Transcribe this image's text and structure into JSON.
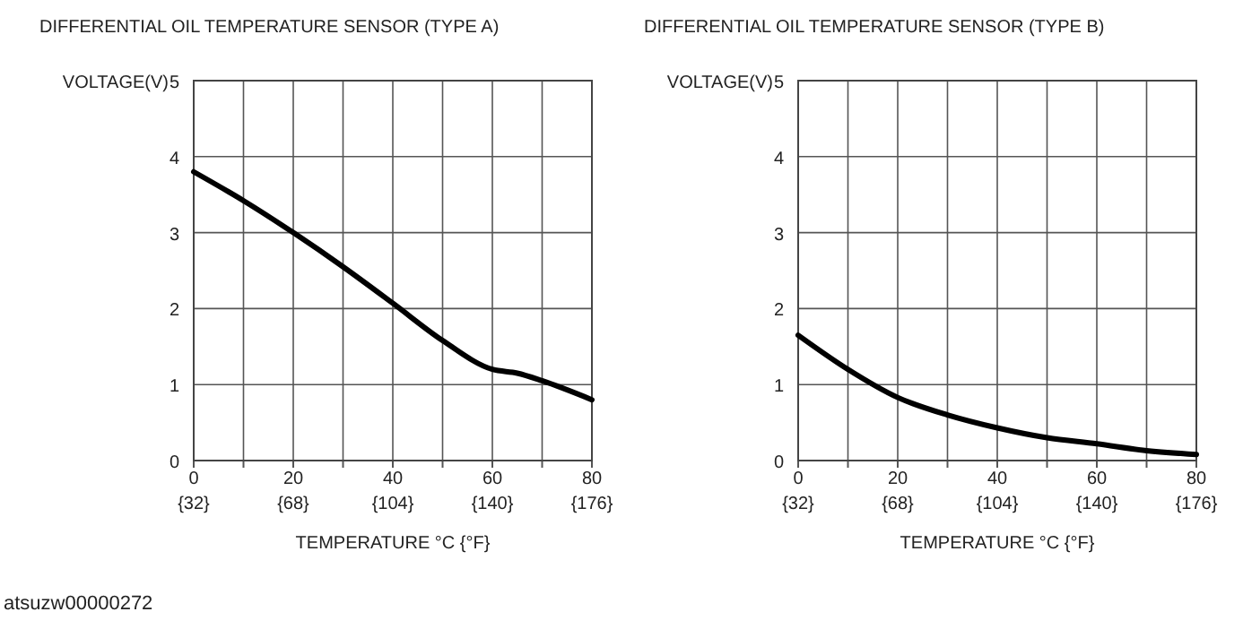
{
  "chart_data": [
    {
      "type": "line",
      "title": "DIFFERENTIAL OIL TEMPERATURE SENSOR (TYPE A)",
      "xlabel": "TEMPERATURE °C {°F}",
      "ylabel": "VOLTAGE(V)",
      "annotations": [
        "atsuzw00000272"
      ],
      "x": [
        0,
        10,
        20,
        30,
        40,
        50,
        60,
        65,
        70,
        80
      ],
      "series": [
        {
          "color": "#000000",
          "values": [
            3.8,
            3.42,
            3.0,
            2.55,
            2.07,
            1.58,
            1.2,
            1.15,
            1.05,
            0.8
          ]
        }
      ],
      "xlim": [
        0,
        80
      ],
      "xticks": [
        0,
        {
          "value": 10,
          "label": null
        },
        20,
        {
          "value": 30,
          "label": null
        },
        40,
        {
          "value": 50,
          "label": null
        },
        60,
        {
          "value": 70,
          "label": null
        },
        80
      ],
      "x2lim": [
        32,
        176
      ],
      "x2ticks": [
        {
          "value": 32,
          "label": "{32}"
        },
        {
          "value": 68,
          "label": "{68}"
        },
        {
          "value": 104,
          "label": "{104}"
        },
        {
          "value": 140,
          "label": "{140}"
        },
        {
          "value": 176,
          "label": "{176}"
        }
      ],
      "ylim": [
        0,
        5
      ],
      "yticks": [
        0,
        1,
        2,
        3,
        4,
        5
      ],
      "grid": true,
      "marker": "none",
      "line_style": "solid"
    },
    {
      "type": "line",
      "title": "DIFFERENTIAL OIL TEMPERATURE SENSOR (TYPE B)",
      "xlabel": "TEMPERATURE °C {°F}",
      "ylabel": "VOLTAGE(V)",
      "x": [
        0,
        10,
        20,
        30,
        40,
        50,
        60,
        70,
        80
      ],
      "series": [
        {
          "color": "#000000",
          "values": [
            1.65,
            1.2,
            0.83,
            0.6,
            0.43,
            0.3,
            0.22,
            0.13,
            0.08
          ]
        }
      ],
      "xlim": [
        0,
        80
      ],
      "xticks": [
        0,
        {
          "value": 10,
          "label": null
        },
        20,
        {
          "value": 30,
          "label": null
        },
        40,
        {
          "value": 50,
          "label": null
        },
        60,
        {
          "value": 70,
          "label": null
        },
        80
      ],
      "x2lim": [
        32,
        176
      ],
      "x2ticks": [
        {
          "value": 32,
          "label": "{32}"
        },
        {
          "value": 68,
          "label": "{68}"
        },
        {
          "value": 104,
          "label": "{104}"
        },
        {
          "value": 140,
          "label": "{140}"
        },
        {
          "value": 176,
          "label": "{176}"
        }
      ],
      "ylim": [
        0,
        5
      ],
      "yticks": [
        0,
        1,
        2,
        3,
        4,
        5
      ],
      "grid": true,
      "marker": "none",
      "line_style": "solid"
    }
  ]
}
